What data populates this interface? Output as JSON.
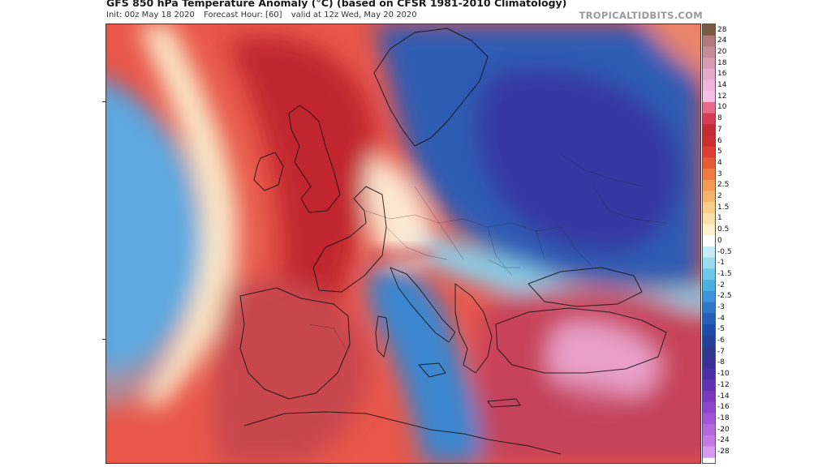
{
  "header": {
    "title": "GFS 850 hPa Temperature Anomaly (°C) (based on CFSR 1981-2010 Climatology)",
    "init": "Init: 00z May 18 2020",
    "forecast_hour": "Forecast Hour: [60]",
    "valid": "valid at 12z Wed, May 20 2020",
    "brand": "TROPICALTIDBITS.COM"
  },
  "map": {
    "variable": "850 hPa temperature anomaly",
    "units": "°C",
    "region": "Europe"
  },
  "legend": {
    "labels": [
      "28",
      "24",
      "20",
      "18",
      "16",
      "14",
      "12",
      "10",
      "8",
      "7",
      "6",
      "5",
      "4",
      "3",
      "2.5",
      "2",
      "1.5",
      "1",
      "0.5",
      "0",
      "-0.5",
      "-1",
      "-1.5",
      "-2",
      "-2.5",
      "-3",
      "-4",
      "-5",
      "-6",
      "-7",
      "-8",
      "-10",
      "-12",
      "-14",
      "-16",
      "-18",
      "-20",
      "-24",
      "-28"
    ],
    "colors": [
      "#7a5a40",
      "#b07a7a",
      "#c78a96",
      "#d89ab0",
      "#e6a8c6",
      "#f0b4d8",
      "#f6c0e4",
      "#e66a8a",
      "#d63c52",
      "#c22a34",
      "#cc2e2e",
      "#dd3e30",
      "#e75a36",
      "#ee7a3e",
      "#f39a52",
      "#f6b46a",
      "#f9cc88",
      "#fbe0a8",
      "#fdf0cc",
      "#ffffff",
      "#c8ecf4",
      "#98dcee",
      "#6cc8ea",
      "#4cb0e4",
      "#3c94dc",
      "#2e78cc",
      "#2260bc",
      "#1c4ea8",
      "#244296",
      "#30388c",
      "#3c3096",
      "#4a2ea4",
      "#6230b0",
      "#7a38c0",
      "#8e46cc",
      "#a256d6",
      "#b468de",
      "#c67ae6",
      "#d89aee"
    ]
  }
}
